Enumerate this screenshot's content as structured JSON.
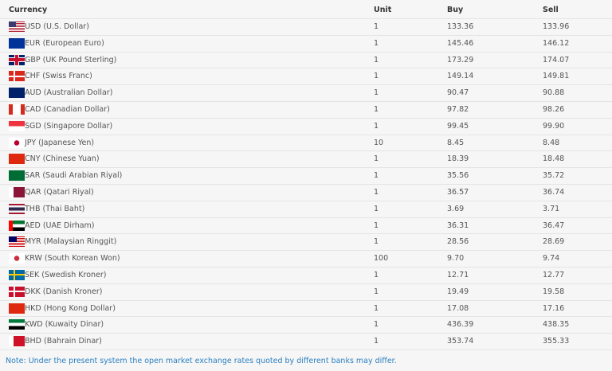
{
  "headers": {
    "currency": "Currency",
    "unit": "Unit",
    "buy": "Buy",
    "sell": "Sell"
  },
  "rows": [
    {
      "flag": "us-flag",
      "colors": [
        "#b22234",
        "#3c3b6e",
        "#ffffff"
      ],
      "name": "USD (U.S. Dollar)",
      "unit": "1",
      "buy": "133.36",
      "sell": "133.96"
    },
    {
      "flag": "eu-flag",
      "colors": [
        "#003399",
        "#003399",
        "#ffcc00"
      ],
      "name": "EUR (European Euro)",
      "unit": "1",
      "buy": "145.46",
      "sell": "146.12"
    },
    {
      "flag": "uk-flag",
      "colors": [
        "#012169",
        "#c8102e",
        "#ffffff"
      ],
      "name": "GBP (UK Pound Sterling)",
      "unit": "1",
      "buy": "173.29",
      "sell": "174.07"
    },
    {
      "flag": "ch-flag",
      "colors": [
        "#da291c",
        "#da291c",
        "#ffffff"
      ],
      "name": "CHF (Swiss Franc)",
      "unit": "1",
      "buy": "149.14",
      "sell": "149.81"
    },
    {
      "flag": "au-flag",
      "colors": [
        "#012169",
        "#012169",
        "#ffffff"
      ],
      "name": "AUD (Australian Dollar)",
      "unit": "1",
      "buy": "90.47",
      "sell": "90.88"
    },
    {
      "flag": "ca-flag",
      "colors": [
        "#d52b1e",
        "#ffffff",
        "#d52b1e"
      ],
      "name": "CAD (Canadian Dollar)",
      "unit": "1",
      "buy": "97.82",
      "sell": "98.26"
    },
    {
      "flag": "sg-flag",
      "colors": [
        "#ef3340",
        "#ffffff",
        "#ffffff"
      ],
      "name": "SGD (Singapore Dollar)",
      "unit": "1",
      "buy": "99.45",
      "sell": "99.90"
    },
    {
      "flag": "jp-flag",
      "colors": [
        "#ffffff",
        "#ffffff",
        "#bc002d"
      ],
      "name": "JPY (Japanese Yen)",
      "unit": "10",
      "buy": "8.45",
      "sell": "8.48"
    },
    {
      "flag": "cn-flag",
      "colors": [
        "#de2910",
        "#de2910",
        "#ffde00"
      ],
      "name": "CNY (Chinese Yuan)",
      "unit": "1",
      "buy": "18.39",
      "sell": "18.48"
    },
    {
      "flag": "sa-flag",
      "colors": [
        "#006c35",
        "#006c35",
        "#ffffff"
      ],
      "name": "SAR (Saudi Arabian Riyal)",
      "unit": "1",
      "buy": "35.56",
      "sell": "35.72"
    },
    {
      "flag": "qa-flag",
      "colors": [
        "#8a1538",
        "#ffffff",
        "#8a1538"
      ],
      "name": "QAR (Qatari Riyal)",
      "unit": "1",
      "buy": "36.57",
      "sell": "36.74"
    },
    {
      "flag": "th-flag",
      "colors": [
        "#a51931",
        "#2d2a4a",
        "#f4f5f8"
      ],
      "name": "THB (Thai Baht)",
      "unit": "1",
      "buy": "3.69",
      "sell": "3.71"
    },
    {
      "flag": "ae-flag",
      "colors": [
        "#00732f",
        "#ff0000",
        "#000000"
      ],
      "name": "AED (UAE Dirham)",
      "unit": "1",
      "buy": "36.31",
      "sell": "36.47"
    },
    {
      "flag": "my-flag",
      "colors": [
        "#cc0001",
        "#010066",
        "#ffffff"
      ],
      "name": "MYR (Malaysian Ringgit)",
      "unit": "1",
      "buy": "28.56",
      "sell": "28.69"
    },
    {
      "flag": "kr-flag",
      "colors": [
        "#ffffff",
        "#ffffff",
        "#cd2e3a"
      ],
      "name": "KRW (South Korean Won)",
      "unit": "100",
      "buy": "9.70",
      "sell": "9.74"
    },
    {
      "flag": "se-flag",
      "colors": [
        "#006aa7",
        "#006aa7",
        "#fecc00"
      ],
      "name": "SEK (Swedish Kroner)",
      "unit": "1",
      "buy": "12.71",
      "sell": "12.77"
    },
    {
      "flag": "dk-flag",
      "colors": [
        "#c8102e",
        "#c8102e",
        "#ffffff"
      ],
      "name": "DKK (Danish Kroner)",
      "unit": "1",
      "buy": "19.49",
      "sell": "19.58"
    },
    {
      "flag": "hk-flag",
      "colors": [
        "#de2910",
        "#de2910",
        "#ffffff"
      ],
      "name": "HKD (Hong Kong Dollar)",
      "unit": "1",
      "buy": "17.08",
      "sell": "17.16"
    },
    {
      "flag": "kw-flag",
      "colors": [
        "#007a3d",
        "#ce1126",
        "#000000"
      ],
      "name": "KWD (Kuwaity Dinar)",
      "unit": "1",
      "buy": "436.39",
      "sell": "438.35"
    },
    {
      "flag": "bh-flag",
      "colors": [
        "#ce1126",
        "#ce1126",
        "#ffffff"
      ],
      "name": "BHD (Bahrain Dinar)",
      "unit": "1",
      "buy": "353.74",
      "sell": "355.33"
    }
  ],
  "note": "Note: Under the present system the open market exchange rates quoted by different banks may differ."
}
